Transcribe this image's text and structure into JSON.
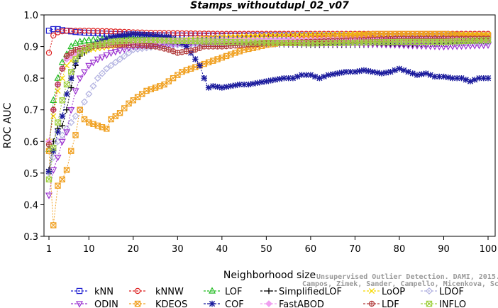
{
  "chart_data": {
    "type": "line",
    "title": "Stamps_withoutdupl_02_v07",
    "xlabel": "Neighborhood size",
    "ylabel": "ROC AUC",
    "xlim": [
      1,
      100
    ],
    "ylim": [
      0.3,
      1.0
    ],
    "xticks": [
      "1",
      "10",
      "20",
      "30",
      "40",
      "50",
      "60",
      "70",
      "80",
      "90",
      "100"
    ],
    "yticks": [
      "0.3",
      "0.4",
      "0.5",
      "0.6",
      "0.7",
      "0.8",
      "0.9",
      "1.0"
    ],
    "grid": false,
    "legend_position": "bottom",
    "series": [
      {
        "name": "kNN",
        "color": "#1f1fd0",
        "marker": "square",
        "points": [
          [
            1,
            0.95
          ],
          [
            2,
            0.955
          ],
          [
            3,
            0.955
          ],
          [
            4,
            0.952
          ],
          [
            5,
            0.95
          ],
          [
            6,
            0.948
          ],
          [
            7,
            0.946
          ],
          [
            8,
            0.945
          ],
          [
            10,
            0.943
          ],
          [
            15,
            0.94
          ],
          [
            20,
            0.938
          ],
          [
            25,
            0.936
          ],
          [
            30,
            0.935
          ],
          [
            40,
            0.934
          ],
          [
            50,
            0.935
          ],
          [
            60,
            0.935
          ],
          [
            70,
            0.935
          ],
          [
            80,
            0.934
          ],
          [
            90,
            0.935
          ],
          [
            100,
            0.935
          ]
        ]
      },
      {
        "name": "kNNW",
        "color": "#dd2222",
        "marker": "circle",
        "points": [
          [
            1,
            0.88
          ],
          [
            2,
            0.935
          ],
          [
            3,
            0.945
          ],
          [
            4,
            0.948
          ],
          [
            5,
            0.95
          ],
          [
            6,
            0.95
          ],
          [
            8,
            0.95
          ],
          [
            10,
            0.95
          ],
          [
            15,
            0.948
          ],
          [
            20,
            0.945
          ],
          [
            25,
            0.943
          ],
          [
            30,
            0.942
          ],
          [
            40,
            0.94
          ],
          [
            50,
            0.94
          ],
          [
            60,
            0.94
          ],
          [
            70,
            0.94
          ],
          [
            80,
            0.94
          ],
          [
            90,
            0.94
          ],
          [
            100,
            0.94
          ]
        ]
      },
      {
        "name": "LOF",
        "color": "#22bb22",
        "marker": "triangle-up",
        "points": [
          [
            1,
            0.575
          ],
          [
            2,
            0.73
          ],
          [
            3,
            0.8
          ],
          [
            4,
            0.85
          ],
          [
            5,
            0.875
          ],
          [
            6,
            0.9
          ],
          [
            7,
            0.91
          ],
          [
            8,
            0.915
          ],
          [
            10,
            0.92
          ],
          [
            15,
            0.925
          ],
          [
            20,
            0.925
          ],
          [
            25,
            0.92
          ],
          [
            30,
            0.918
          ],
          [
            40,
            0.918
          ],
          [
            50,
            0.915
          ],
          [
            60,
            0.912
          ],
          [
            70,
            0.915
          ],
          [
            80,
            0.915
          ],
          [
            90,
            0.915
          ],
          [
            100,
            0.92
          ]
        ]
      },
      {
        "name": "SimplifiedLOF",
        "color": "#000000",
        "marker": "plus",
        "points": [
          [
            1,
            0.51
          ],
          [
            2,
            0.6
          ],
          [
            3,
            0.64
          ],
          [
            4,
            0.65
          ],
          [
            5,
            0.7
          ],
          [
            6,
            0.77
          ],
          [
            7,
            0.84
          ],
          [
            8,
            0.87
          ],
          [
            10,
            0.89
          ],
          [
            12,
            0.905
          ],
          [
            15,
            0.915
          ],
          [
            20,
            0.92
          ],
          [
            25,
            0.918
          ],
          [
            30,
            0.915
          ],
          [
            40,
            0.91
          ],
          [
            50,
            0.908
          ],
          [
            60,
            0.905
          ],
          [
            70,
            0.905
          ],
          [
            80,
            0.905
          ],
          [
            90,
            0.91
          ],
          [
            100,
            0.915
          ]
        ]
      },
      {
        "name": "LoOP",
        "color": "#f5d800",
        "marker": "cross",
        "points": [
          [
            1,
            0.6
          ],
          [
            2,
            0.68
          ],
          [
            3,
            0.76
          ],
          [
            4,
            0.8
          ],
          [
            5,
            0.84
          ],
          [
            7,
            0.87
          ],
          [
            10,
            0.89
          ],
          [
            15,
            0.9
          ],
          [
            20,
            0.91
          ],
          [
            25,
            0.915
          ],
          [
            30,
            0.92
          ],
          [
            40,
            0.93
          ],
          [
            50,
            0.935
          ],
          [
            60,
            0.938
          ],
          [
            70,
            0.94
          ],
          [
            80,
            0.94
          ],
          [
            90,
            0.94
          ],
          [
            100,
            0.938
          ]
        ]
      },
      {
        "name": "LDOF",
        "color": "#b0b0e0",
        "marker": "diamond",
        "points": [
          [
            1,
            0.5
          ],
          [
            2,
            0.55
          ],
          [
            3,
            0.6
          ],
          [
            4,
            0.62
          ],
          [
            5,
            0.64
          ],
          [
            6,
            0.66
          ],
          [
            8,
            0.7
          ],
          [
            10,
            0.75
          ],
          [
            12,
            0.8
          ],
          [
            14,
            0.83
          ],
          [
            16,
            0.85
          ],
          [
            18,
            0.87
          ],
          [
            20,
            0.89
          ],
          [
            25,
            0.9
          ],
          [
            30,
            0.905
          ],
          [
            40,
            0.91
          ],
          [
            50,
            0.91
          ],
          [
            60,
            0.91
          ],
          [
            70,
            0.915
          ],
          [
            80,
            0.915
          ],
          [
            90,
            0.915
          ],
          [
            100,
            0.915
          ]
        ]
      },
      {
        "name": "ODIN",
        "color": "#9b30d0",
        "marker": "triangle-down",
        "points": [
          [
            1,
            0.43
          ],
          [
            2,
            0.51
          ],
          [
            3,
            0.55
          ],
          [
            4,
            0.6
          ],
          [
            5,
            0.63
          ],
          [
            6,
            0.7
          ],
          [
            7,
            0.76
          ],
          [
            8,
            0.8
          ],
          [
            10,
            0.84
          ],
          [
            12,
            0.86
          ],
          [
            15,
            0.88
          ],
          [
            20,
            0.9
          ],
          [
            25,
            0.905
          ],
          [
            30,
            0.91
          ],
          [
            40,
            0.915
          ],
          [
            50,
            0.912
          ],
          [
            60,
            0.91
          ],
          [
            70,
            0.91
          ],
          [
            80,
            0.905
          ],
          [
            90,
            0.9
          ],
          [
            100,
            0.905
          ]
        ]
      },
      {
        "name": "KDEOS",
        "color": "#f0a020",
        "marker": "square-x",
        "points": [
          [
            1,
            0.57
          ],
          [
            2,
            0.335
          ],
          [
            3,
            0.46
          ],
          [
            4,
            0.48
          ],
          [
            5,
            0.51
          ],
          [
            6,
            0.57
          ],
          [
            7,
            0.62
          ],
          [
            8,
            0.7
          ],
          [
            9,
            0.67
          ],
          [
            10,
            0.66
          ],
          [
            12,
            0.65
          ],
          [
            14,
            0.64
          ],
          [
            15,
            0.67
          ],
          [
            17,
            0.69
          ],
          [
            19,
            0.72
          ],
          [
            21,
            0.74
          ],
          [
            23,
            0.76
          ],
          [
            25,
            0.77
          ],
          [
            27,
            0.78
          ],
          [
            29,
            0.8
          ],
          [
            31,
            0.82
          ],
          [
            33,
            0.83
          ],
          [
            35,
            0.84
          ],
          [
            37,
            0.85
          ],
          [
            39,
            0.86
          ],
          [
            41,
            0.87
          ],
          [
            43,
            0.88
          ],
          [
            45,
            0.89
          ],
          [
            47,
            0.895
          ],
          [
            50,
            0.905
          ],
          [
            55,
            0.915
          ],
          [
            60,
            0.925
          ],
          [
            65,
            0.93
          ],
          [
            70,
            0.935
          ],
          [
            75,
            0.94
          ],
          [
            80,
            0.94
          ],
          [
            85,
            0.94
          ],
          [
            90,
            0.94
          ],
          [
            95,
            0.935
          ],
          [
            100,
            0.935
          ]
        ]
      },
      {
        "name": "COF",
        "color": "#1a1a9c",
        "marker": "asterisk",
        "points": [
          [
            1,
            0.505
          ],
          [
            2,
            0.57
          ],
          [
            3,
            0.63
          ],
          [
            4,
            0.68
          ],
          [
            5,
            0.75
          ],
          [
            6,
            0.8
          ],
          [
            7,
            0.85
          ],
          [
            8,
            0.88
          ],
          [
            10,
            0.9
          ],
          [
            15,
            0.93
          ],
          [
            20,
            0.94
          ],
          [
            25,
            0.935
          ],
          [
            28,
            0.93
          ],
          [
            30,
            0.92
          ],
          [
            32,
            0.9
          ],
          [
            34,
            0.86
          ],
          [
            35,
            0.84
          ],
          [
            36,
            0.8
          ],
          [
            37,
            0.77
          ],
          [
            38,
            0.775
          ],
          [
            40,
            0.77
          ],
          [
            42,
            0.775
          ],
          [
            44,
            0.78
          ],
          [
            46,
            0.78
          ],
          [
            48,
            0.785
          ],
          [
            50,
            0.79
          ],
          [
            52,
            0.795
          ],
          [
            54,
            0.8
          ],
          [
            56,
            0.8
          ],
          [
            58,
            0.81
          ],
          [
            60,
            0.81
          ],
          [
            62,
            0.8
          ],
          [
            64,
            0.81
          ],
          [
            66,
            0.815
          ],
          [
            68,
            0.82
          ],
          [
            70,
            0.82
          ],
          [
            72,
            0.825
          ],
          [
            74,
            0.82
          ],
          [
            76,
            0.815
          ],
          [
            78,
            0.82
          ],
          [
            80,
            0.83
          ],
          [
            82,
            0.82
          ],
          [
            84,
            0.81
          ],
          [
            86,
            0.815
          ],
          [
            88,
            0.805
          ],
          [
            90,
            0.805
          ],
          [
            92,
            0.8
          ],
          [
            94,
            0.8
          ],
          [
            96,
            0.79
          ],
          [
            98,
            0.8
          ],
          [
            100,
            0.8
          ]
        ]
      },
      {
        "name": "FastABOD",
        "color": "#f0a0f0",
        "marker": "diamond-filled",
        "points": [
          [
            1,
            0.6
          ],
          [
            2,
            0.7
          ],
          [
            3,
            0.78
          ],
          [
            4,
            0.83
          ],
          [
            5,
            0.86
          ],
          [
            7,
            0.88
          ],
          [
            10,
            0.9
          ],
          [
            15,
            0.91
          ],
          [
            20,
            0.915
          ],
          [
            30,
            0.92
          ],
          [
            40,
            0.92
          ],
          [
            50,
            0.92
          ],
          [
            60,
            0.92
          ],
          [
            70,
            0.922
          ],
          [
            80,
            0.922
          ],
          [
            90,
            0.922
          ],
          [
            100,
            0.922
          ]
        ]
      },
      {
        "name": "LDF",
        "color": "#b03a3a",
        "marker": "circle-plus",
        "points": [
          [
            1,
            0.59
          ],
          [
            2,
            0.7
          ],
          [
            3,
            0.78
          ],
          [
            4,
            0.83
          ],
          [
            5,
            0.87
          ],
          [
            7,
            0.89
          ],
          [
            10,
            0.9
          ],
          [
            15,
            0.905
          ],
          [
            20,
            0.905
          ],
          [
            25,
            0.9
          ],
          [
            28,
            0.89
          ],
          [
            30,
            0.88
          ],
          [
            32,
            0.885
          ],
          [
            34,
            0.89
          ],
          [
            36,
            0.9
          ],
          [
            40,
            0.9
          ],
          [
            45,
            0.905
          ],
          [
            50,
            0.91
          ],
          [
            60,
            0.915
          ],
          [
            70,
            0.92
          ],
          [
            80,
            0.925
          ],
          [
            90,
            0.925
          ],
          [
            100,
            0.925
          ]
        ]
      },
      {
        "name": "INFLO",
        "color": "#a0d040",
        "marker": "square-x",
        "points": [
          [
            1,
            0.48
          ],
          [
            2,
            0.58
          ],
          [
            3,
            0.66
          ],
          [
            4,
            0.73
          ],
          [
            5,
            0.78
          ],
          [
            6,
            0.82
          ],
          [
            7,
            0.86
          ],
          [
            8,
            0.88
          ],
          [
            10,
            0.9
          ],
          [
            15,
            0.915
          ],
          [
            20,
            0.92
          ],
          [
            25,
            0.92
          ],
          [
            30,
            0.918
          ],
          [
            40,
            0.915
          ],
          [
            50,
            0.912
          ],
          [
            60,
            0.91
          ],
          [
            70,
            0.912
          ],
          [
            80,
            0.915
          ],
          [
            90,
            0.915
          ],
          [
            100,
            0.92
          ]
        ]
      }
    ]
  },
  "watermark": {
    "line1": "Unsupervised Outlier Detection. DAMI, 2015.",
    "line2": "Campos, Zimek, Sander, Campello, Micenkova, Schubert, Assent, Houle"
  }
}
